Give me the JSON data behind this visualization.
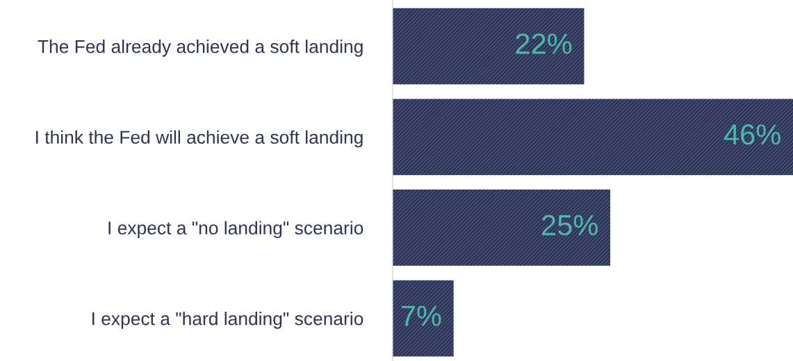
{
  "chart_data": {
    "type": "bar",
    "orientation": "horizontal",
    "categories": [
      "The Fed already achieved a soft landing",
      "I think the Fed will achieve a soft landing",
      "I expect a \"no landing\" scenario",
      "I expect a \"hard landing\" scenario"
    ],
    "values": [
      22,
      46,
      25,
      7
    ],
    "color": "#2b3252",
    "value_labels": [
      "22%",
      "46%",
      "25%",
      "7%"
    ],
    "xlim": [
      0,
      46
    ],
    "tick_labels": "y",
    "grid": false,
    "legend": false
  }
}
